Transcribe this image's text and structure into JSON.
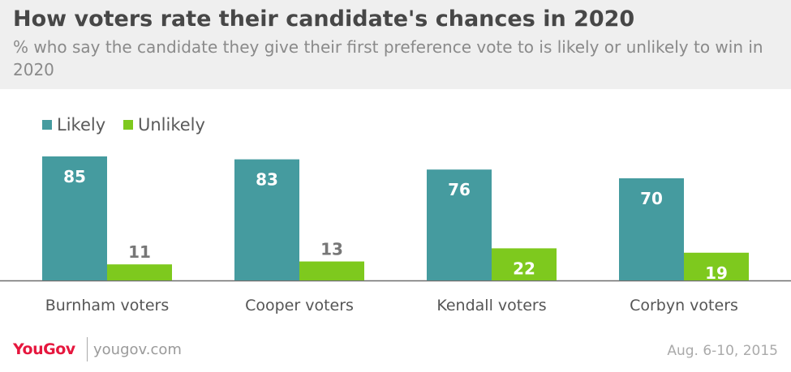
{
  "header": {
    "title": "How voters rate their candidate's chances in 2020",
    "subtitle": "% who say the candidate they give their first preference vote to is likely or unlikely to win in 2020"
  },
  "legend": {
    "items": [
      {
        "label": "Likely",
        "color": "#459b9f"
      },
      {
        "label": "Unlikely",
        "color": "#7ec91e"
      }
    ]
  },
  "chart_data": {
    "type": "bar",
    "categories": [
      "Burnham voters",
      "Cooper voters",
      "Kendall voters",
      "Corbyn voters"
    ],
    "series": [
      {
        "name": "Likely",
        "values": [
          85,
          83,
          76,
          70
        ],
        "color": "#459b9f"
      },
      {
        "name": "Unlikely",
        "values": [
          11,
          13,
          22,
          19
        ],
        "color": "#7ec91e"
      }
    ],
    "ylim": [
      0,
      100
    ],
    "legend_position": "top-left",
    "grid": false
  },
  "footer": {
    "logo": "YouGov",
    "site": "yougov.com",
    "date": "Aug. 6-10, 2015"
  }
}
